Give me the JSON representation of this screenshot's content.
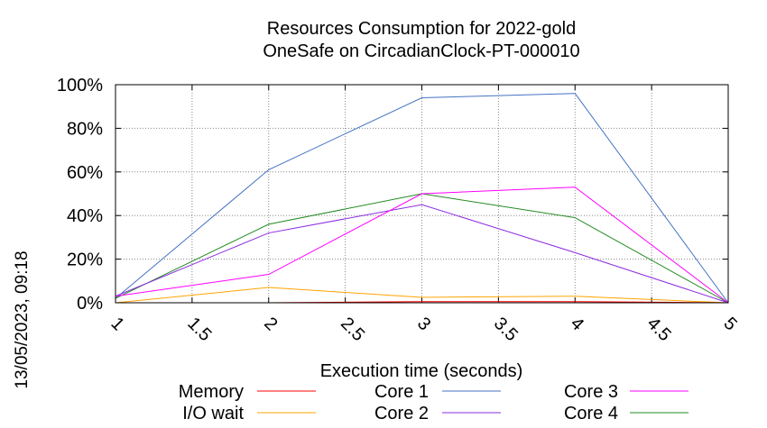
{
  "chart_data": {
    "type": "line",
    "title_line1": "Resources Consumption for 2022-gold",
    "title_line2": "OneSafe on CircadianClock-PT-000010",
    "xlabel": "Execution time (seconds)",
    "ylabel": "",
    "side_label": "13/05/2023, 09:18",
    "xlim": [
      1,
      5
    ],
    "ylim": [
      0,
      100
    ],
    "x_ticks": [
      1,
      1.5,
      2,
      2.5,
      3,
      3.5,
      4,
      4.5,
      5
    ],
    "x_tick_labels": [
      "1",
      "1.5",
      "2",
      "2.5",
      "3",
      "3.5",
      "4",
      "4.5",
      "5"
    ],
    "y_ticks": [
      0,
      20,
      40,
      60,
      80,
      100
    ],
    "y_tick_labels": [
      "0%",
      "20%",
      "40%",
      "60%",
      "80%",
      "100%"
    ],
    "grid": true,
    "legend_position": "bottom",
    "x": [
      1,
      2,
      3,
      4,
      5
    ],
    "series": [
      {
        "name": "Memory",
        "color": "#ff0000",
        "values": [
          0,
          0,
          0.5,
          0.5,
          0
        ]
      },
      {
        "name": "I/O wait",
        "color": "#ffa500",
        "values": [
          0,
          7,
          2.5,
          3,
          0
        ]
      },
      {
        "name": "Core 1",
        "color": "#4472c4",
        "values": [
          2,
          61,
          94,
          96,
          0
        ]
      },
      {
        "name": "Core 2",
        "color": "#8a2be2",
        "values": [
          3,
          32,
          45,
          23,
          0
        ]
      },
      {
        "name": "Core 3",
        "color": "#ff00ff",
        "values": [
          3,
          13,
          50,
          53,
          0
        ]
      },
      {
        "name": "Core 4",
        "color": "#228b22",
        "values": [
          2,
          36,
          50,
          39,
          0
        ]
      }
    ]
  }
}
